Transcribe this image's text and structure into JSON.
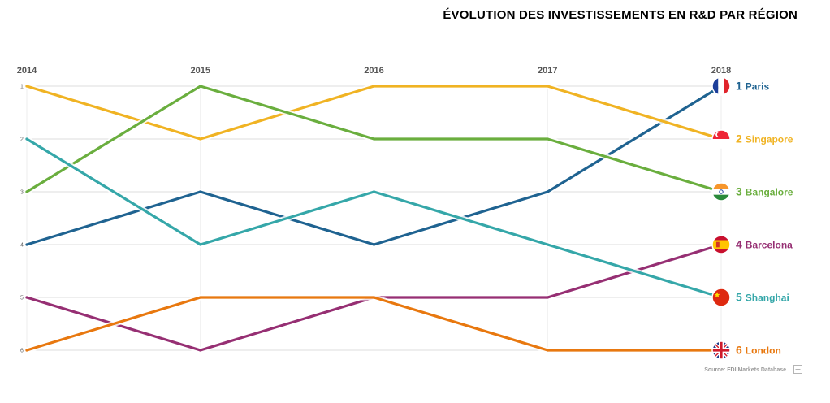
{
  "title": "ÉVOLUTION DES INVESTISSEMENTS EN R&D PAR RÉGION",
  "source": "Source: FDI Markets Database",
  "chart_data": {
    "type": "line",
    "title": "ÉVOLUTION DES INVESTISSEMENTS EN R&D PAR RÉGION",
    "x": [
      "2014",
      "2015",
      "2016",
      "2017",
      "2018"
    ],
    "y_ticks": [
      "1",
      "2",
      "3",
      "4",
      "5",
      "6"
    ],
    "ylim": [
      1,
      6
    ],
    "y_inverted": true,
    "grid": true,
    "series": [
      {
        "name": "Paris",
        "rank_label": "1",
        "flag": "france-flag-icon",
        "color": "#1f6391",
        "values": [
          4,
          3,
          4,
          3,
          1
        ]
      },
      {
        "name": "Singapore",
        "rank_label": "2",
        "flag": "singapore-flag-icon",
        "color": "#f0b323",
        "values": [
          1,
          2,
          1,
          1,
          2
        ]
      },
      {
        "name": "Bangalore",
        "rank_label": "3",
        "flag": "india-flag-icon",
        "color": "#6aae3e",
        "values": [
          3,
          1,
          2,
          2,
          3
        ]
      },
      {
        "name": "Barcelona",
        "rank_label": "4",
        "flag": "spain-flag-icon",
        "color": "#962f73",
        "values": [
          5,
          6,
          5,
          5,
          4
        ]
      },
      {
        "name": "Shanghai",
        "rank_label": "5",
        "flag": "china-flag-icon",
        "color": "#35a7a9",
        "values": [
          2,
          4,
          3,
          4,
          5
        ]
      },
      {
        "name": "London",
        "rank_label": "6",
        "flag": "uk-flag-icon",
        "color": "#e8780f",
        "values": [
          6,
          5,
          5,
          6,
          6
        ]
      }
    ]
  }
}
